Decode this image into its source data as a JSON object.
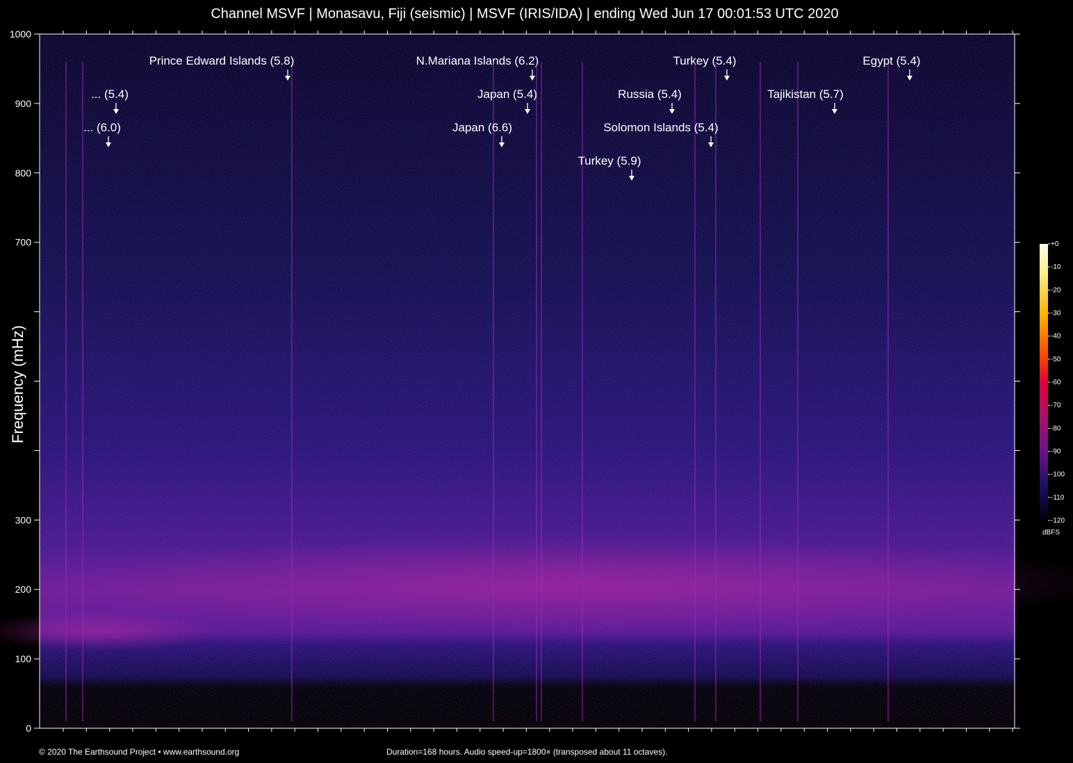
{
  "title": "Channel MSVF | Monasavu, Fiji (seismic) | MSVF (IRIS/IDA) | ending Wed Jun 17 00:01:53 UTC 2020",
  "footer_left": "© 2020 The Earthsound Project • www.earthsound.org",
  "footer_right": "Duration=168 hours. Audio speed-up=1800× (transposed about 11 octaves).",
  "chart_data": {
    "type": "heatmap",
    "ylabel": "Frequency (mHz)",
    "ylim": [
      0,
      1000
    ],
    "y_ticks": [
      0,
      100,
      200,
      300,
      400,
      500,
      600,
      700,
      800,
      900,
      1000
    ],
    "y_tick_labels": [
      "0",
      "100",
      "200",
      "300",
      "",
      "",
      "",
      "700",
      "800",
      "900",
      "1000"
    ],
    "duration_hours": 168,
    "grid": false,
    "colors": {
      "background": "#000000",
      "low": "#0a0a3a",
      "mid": "#8a1a9a",
      "high": "#fff8c0",
      "annotation": "#ffffff"
    },
    "events": [
      {
        "label": "Prince Edward Islands (5.8)",
        "row": 0
      },
      {
        "label": "N.Mariana Islands (6.2)",
        "row": 0
      },
      {
        "label": "Turkey (5.4)",
        "row": 0
      },
      {
        "label": "Egypt (5.4)",
        "row": 0
      },
      {
        "label": "... (5.4)",
        "row": 1
      },
      {
        "label": "Japan (5.4)",
        "row": 1
      },
      {
        "label": "Russia (5.4)",
        "row": 1
      },
      {
        "label": "Tajikistan (5.7)",
        "row": 1
      },
      {
        "label": "... (6.0)",
        "row": 2
      },
      {
        "label": "Japan (6.6)",
        "row": 2
      },
      {
        "label": "Solomon Islands (5.4)",
        "row": 2
      },
      {
        "label": "Turkey (5.9)",
        "row": 3
      }
    ],
    "colorbar": {
      "unit": "dBFS",
      "range": [
        -120,
        0
      ],
      "ticks": [
        0,
        -10,
        -20,
        -30,
        -40,
        -50,
        -60,
        -70,
        -80,
        -90,
        -100,
        -110,
        -120
      ],
      "tick_labels": [
        "+0",
        "-10",
        "-20",
        "-30",
        "-40",
        "-50",
        "-60",
        "-70",
        "-80",
        "-90",
        "-100",
        "-110",
        "-120"
      ]
    }
  }
}
